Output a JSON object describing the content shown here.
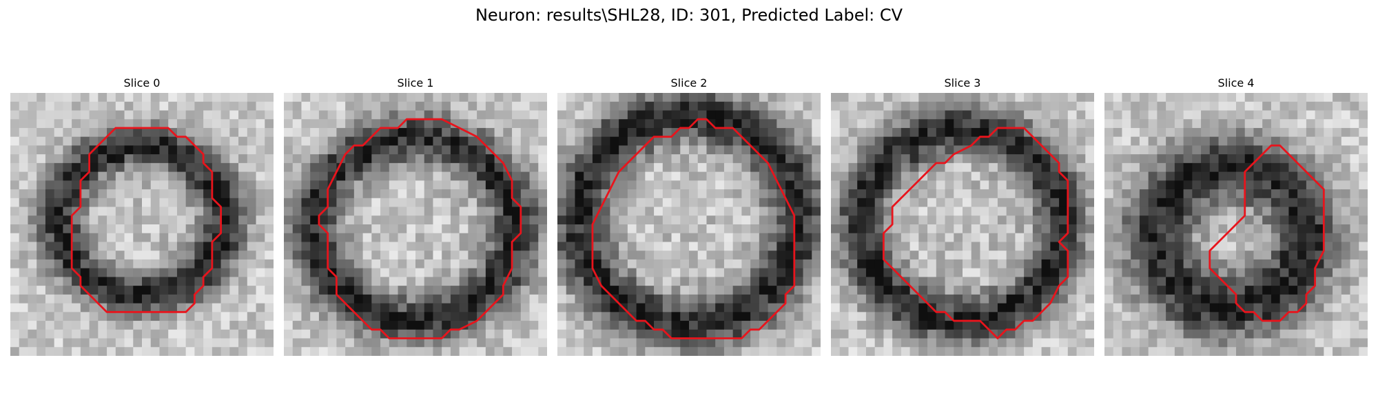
{
  "title": "Neuron: results\\SHL28, ID: 301, Predicted Label: CV",
  "colors": {
    "contour": "#e8141c",
    "background": "#ffffff"
  },
  "panels": [
    {
      "title": "Slice 0",
      "contour": "annotated-region-contour"
    },
    {
      "title": "Slice 1",
      "contour": "annotated-region-contour"
    },
    {
      "title": "Slice 2",
      "contour": "annotated-region-contour"
    },
    {
      "title": "Slice 3",
      "contour": "annotated-region-contour"
    },
    {
      "title": "Slice 4",
      "contour": "annotated-region-contour"
    }
  ]
}
